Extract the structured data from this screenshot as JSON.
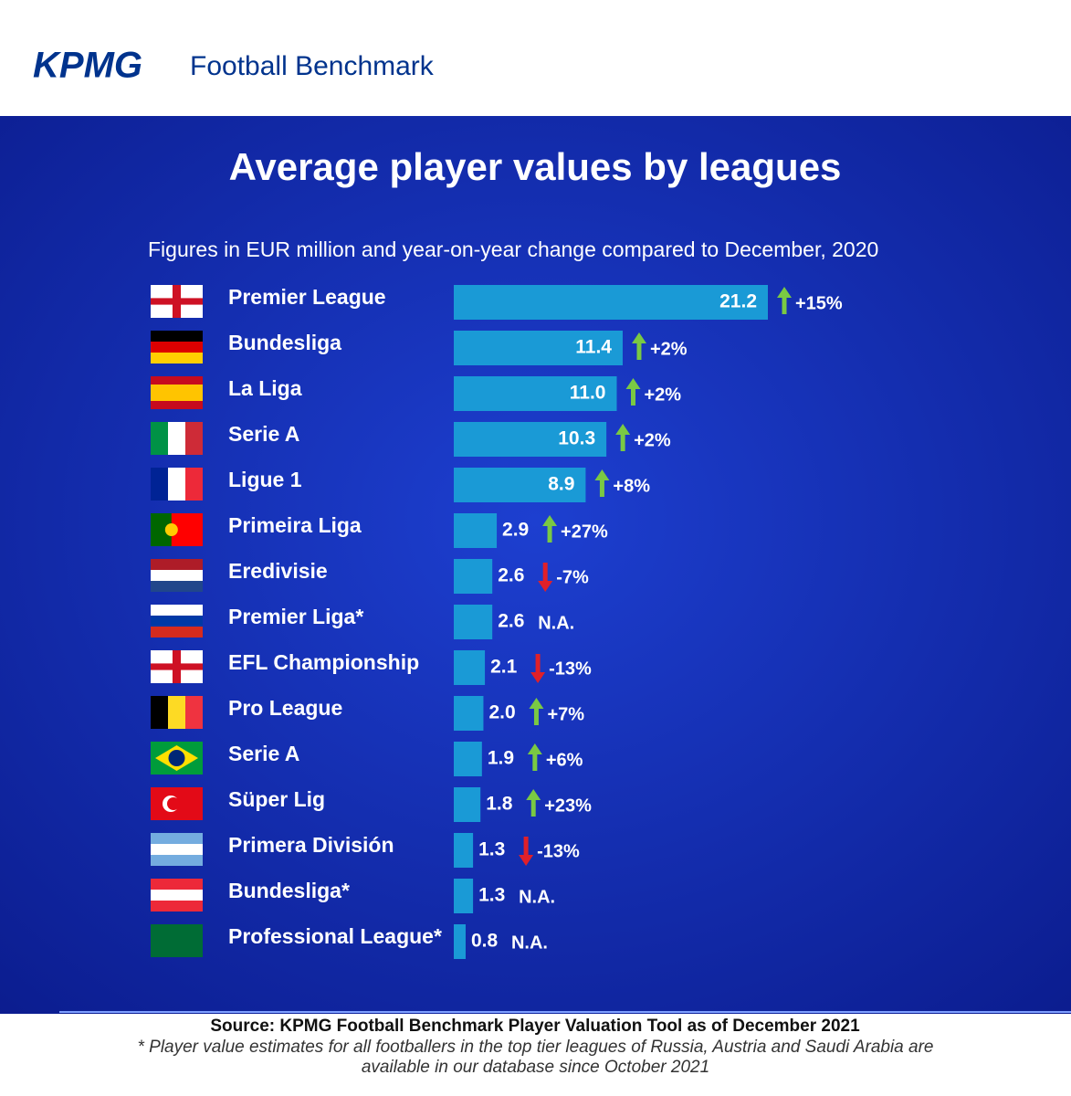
{
  "chart_data": {
    "type": "bar",
    "logo": "KPMG",
    "brand": "Football Benchmark",
    "title": "Average player values by leagues",
    "subtitle": "Figures in EUR million and year-on-year change compared to December, 2020",
    "categories": [
      "Premier League",
      "Bundesliga",
      "La Liga",
      "Serie A",
      "Ligue 1",
      "Primeira Liga",
      "Eredivisie",
      "Premier Liga*",
      "EFL Championship",
      "Pro League",
      "Serie A",
      "Süper Lig",
      "Primera División",
      "Bundesliga*",
      "Professional League*"
    ],
    "values": [
      21.2,
      11.4,
      11.0,
      10.3,
      8.9,
      2.9,
      2.6,
      2.6,
      2.1,
      2.0,
      1.9,
      1.8,
      1.3,
      1.3,
      0.8
    ],
    "value_labels": [
      "21.2",
      "11.4",
      "11.0",
      "10.3",
      "8.9",
      "2.9",
      "2.6",
      "2.6",
      "2.1",
      "2.0",
      "1.9",
      "1.8",
      "1.3",
      "1.3",
      "0.8"
    ],
    "changes": [
      15,
      2,
      2,
      2,
      8,
      27,
      -7,
      null,
      -13,
      7,
      6,
      23,
      -13,
      null,
      null
    ],
    "change_labels": [
      "+15%",
      "+2%",
      "+2%",
      "+2%",
      "+8%",
      "+27%",
      "-7%",
      "N.A.",
      "-13%",
      "+7%",
      "+6%",
      "+23%",
      "-13%",
      "N.A.",
      "N.A."
    ],
    "color": "#1a9ad6",
    "source": "Source: KPMG Football Benchmark Player Valuation Tool as of December 2021",
    "note": "* Player value estimates for all footballers in the top tier leagues of Russia, Austria and Saudi Arabia are available in our database since October 2021"
  }
}
